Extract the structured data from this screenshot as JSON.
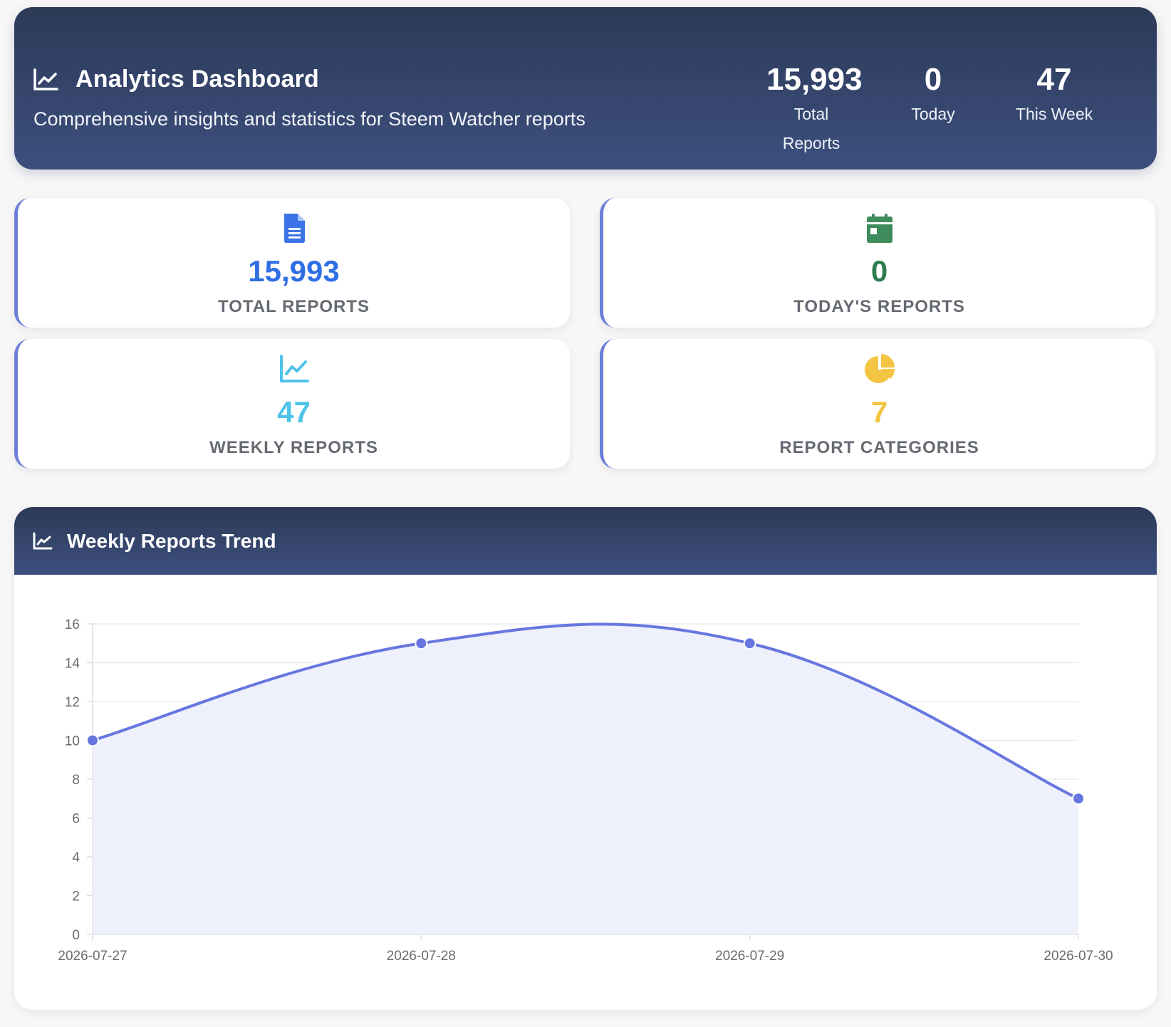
{
  "header": {
    "title": "Analytics Dashboard",
    "subtitle": "Comprehensive insights and statistics for Steem Watcher reports",
    "title_icon": "chart-line-icon",
    "stats": [
      {
        "value": "15,993",
        "label_line1": "Total",
        "label_line2": "Reports"
      },
      {
        "value": "0",
        "label": "Today"
      },
      {
        "value": "47",
        "label": "This Week"
      }
    ]
  },
  "cards": [
    {
      "value": "15,993",
      "label": "TOTAL REPORTS",
      "icon": "document-icon",
      "color": "#2f6fe4"
    },
    {
      "value": "0",
      "label": "TODAY'S REPORTS",
      "icon": "calendar-icon",
      "color": "#2e8b57"
    },
    {
      "value": "47",
      "label": "WEEKLY REPORTS",
      "icon": "chart-line-icon",
      "color": "#4fc3e8"
    },
    {
      "value": "7",
      "label": "REPORT CATEGORIES",
      "icon": "pie-chart-icon",
      "color": "#f4c542"
    }
  ],
  "trend": {
    "title": "Weekly Reports Trend",
    "icon": "chart-line-icon"
  },
  "chart_data": {
    "type": "line",
    "title": "",
    "xlabel": "",
    "ylabel": "",
    "x": [
      "2026-07-27",
      "2026-07-28",
      "2026-07-29",
      "2026-07-30"
    ],
    "series": [
      {
        "values": [
          10,
          15,
          15,
          7
        ]
      }
    ],
    "ylim": [
      0,
      16
    ],
    "yticks": [
      0,
      2,
      4,
      6,
      8,
      10,
      12,
      14,
      16
    ],
    "grid": true,
    "filled": true,
    "line_color": "#6776df",
    "fill_color": "#eef0fb"
  }
}
